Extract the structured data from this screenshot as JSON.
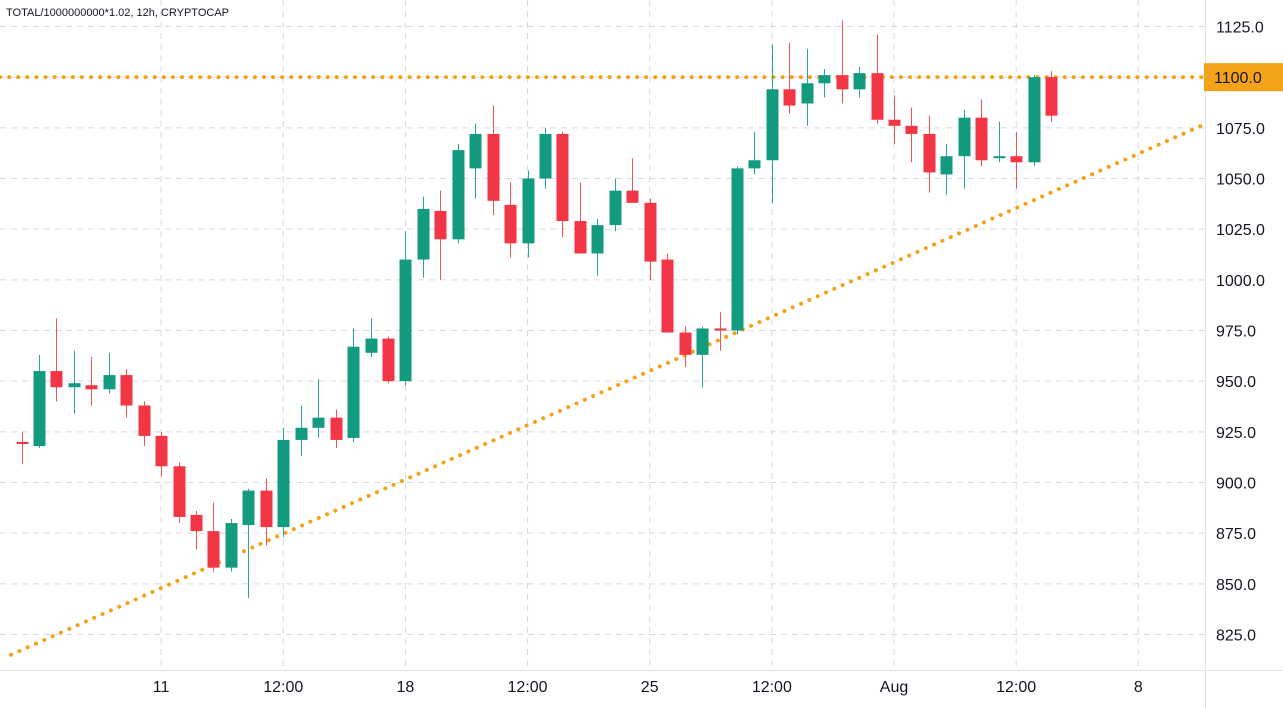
{
  "header": {
    "title": "TOTAL/1000000000*1.02, 12h, CRYPTOCAP"
  },
  "chart_data": {
    "type": "candlestick",
    "timeframe": "12h",
    "ylim": [
      812,
      1140
    ],
    "y_ticks": [
      825,
      850,
      875,
      900,
      925,
      950,
      975,
      1000,
      1025,
      1050,
      1075,
      1100,
      1125
    ],
    "y_tick_labels": [
      "825.0",
      "850.0",
      "875.0",
      "900.0",
      "925.0",
      "950.0",
      "975.0",
      "1000.0",
      "1025.0",
      "1050.0",
      "1075.0",
      "1100.0",
      "1125.0"
    ],
    "x_tick_labels": [
      {
        "index": 8,
        "label": "11"
      },
      {
        "index": 15,
        "label": "12:00"
      },
      {
        "index": 22,
        "label": "18"
      },
      {
        "index": 29,
        "label": "12:00"
      },
      {
        "index": 36,
        "label": "25"
      },
      {
        "index": 43,
        "label": "12:00"
      },
      {
        "index": 50,
        "label": "Aug"
      },
      {
        "index": 57,
        "label": "12:00"
      },
      {
        "index": 64,
        "label": "8"
      }
    ],
    "colors": {
      "up": "#26a69a",
      "down": "#ef5350",
      "up_body": "#129b7f",
      "down_body": "#f23645",
      "level": "#f5a21b",
      "grid": "#d6d9de"
    },
    "level_line": {
      "value": 1100,
      "label": "1100.0"
    },
    "trendline": {
      "start": {
        "index": -0.6,
        "value": 815
      },
      "end": {
        "index": 67.6,
        "value": 1076
      }
    },
    "candles": [
      {
        "i": 0,
        "o": 920,
        "h": 925,
        "l": 909,
        "c": 919
      },
      {
        "i": 1,
        "o": 918,
        "h": 963,
        "l": 917,
        "c": 955
      },
      {
        "i": 2,
        "o": 955,
        "h": 981,
        "l": 940,
        "c": 947
      },
      {
        "i": 3,
        "o": 947,
        "h": 965,
        "l": 934,
        "c": 949
      },
      {
        "i": 4,
        "o": 948,
        "h": 962,
        "l": 938,
        "c": 946
      },
      {
        "i": 5,
        "o": 946,
        "h": 964,
        "l": 944,
        "c": 953
      },
      {
        "i": 6,
        "o": 953,
        "h": 956,
        "l": 932,
        "c": 938
      },
      {
        "i": 7,
        "o": 938,
        "h": 940,
        "l": 918,
        "c": 923
      },
      {
        "i": 8,
        "o": 923,
        "h": 925,
        "l": 903,
        "c": 908
      },
      {
        "i": 9,
        "o": 908,
        "h": 910,
        "l": 880,
        "c": 883
      },
      {
        "i": 10,
        "o": 884,
        "h": 886,
        "l": 867,
        "c": 876
      },
      {
        "i": 11,
        "o": 876,
        "h": 890,
        "l": 856,
        "c": 858
      },
      {
        "i": 12,
        "o": 858,
        "h": 882,
        "l": 856,
        "c": 880
      },
      {
        "i": 13,
        "o": 879,
        "h": 897,
        "l": 843,
        "c": 896
      },
      {
        "i": 14,
        "o": 896,
        "h": 902,
        "l": 869,
        "c": 878
      },
      {
        "i": 15,
        "o": 878,
        "h": 927,
        "l": 873,
        "c": 921
      },
      {
        "i": 16,
        "o": 921,
        "h": 938,
        "l": 913,
        "c": 927
      },
      {
        "i": 17,
        "o": 927,
        "h": 951,
        "l": 922,
        "c": 932
      },
      {
        "i": 18,
        "o": 932,
        "h": 936,
        "l": 917,
        "c": 921
      },
      {
        "i": 19,
        "o": 922,
        "h": 976,
        "l": 920,
        "c": 967
      },
      {
        "i": 20,
        "o": 964,
        "h": 981,
        "l": 962,
        "c": 971
      },
      {
        "i": 21,
        "o": 971,
        "h": 972,
        "l": 949,
        "c": 950
      },
      {
        "i": 22,
        "o": 950,
        "h": 1024,
        "l": 948,
        "c": 1010
      },
      {
        "i": 23,
        "o": 1010,
        "h": 1041,
        "l": 1001,
        "c": 1035
      },
      {
        "i": 24,
        "o": 1034,
        "h": 1044,
        "l": 1000,
        "c": 1020
      },
      {
        "i": 25,
        "o": 1020,
        "h": 1067,
        "l": 1018,
        "c": 1064
      },
      {
        "i": 26,
        "o": 1055,
        "h": 1077,
        "l": 1040,
        "c": 1072
      },
      {
        "i": 27,
        "o": 1072,
        "h": 1086,
        "l": 1032,
        "c": 1039
      },
      {
        "i": 28,
        "o": 1037,
        "h": 1048,
        "l": 1011,
        "c": 1018
      },
      {
        "i": 29,
        "o": 1018,
        "h": 1054,
        "l": 1011,
        "c": 1050
      },
      {
        "i": 30,
        "o": 1050,
        "h": 1075,
        "l": 1045,
        "c": 1072
      },
      {
        "i": 31,
        "o": 1072,
        "h": 1073,
        "l": 1021,
        "c": 1029
      },
      {
        "i": 32,
        "o": 1029,
        "h": 1048,
        "l": 1014,
        "c": 1013
      },
      {
        "i": 33,
        "o": 1013,
        "h": 1030,
        "l": 1002,
        "c": 1027
      },
      {
        "i": 34,
        "o": 1027,
        "h": 1050,
        "l": 1024,
        "c": 1044
      },
      {
        "i": 35,
        "o": 1044,
        "h": 1060,
        "l": 1038,
        "c": 1038
      },
      {
        "i": 36,
        "o": 1038,
        "h": 1040,
        "l": 1000,
        "c": 1009
      },
      {
        "i": 37,
        "o": 1010,
        "h": 1013,
        "l": 974,
        "c": 974
      },
      {
        "i": 38,
        "o": 974,
        "h": 977,
        "l": 957,
        "c": 963
      },
      {
        "i": 39,
        "o": 963,
        "h": 977,
        "l": 947,
        "c": 976
      },
      {
        "i": 40,
        "o": 976,
        "h": 984,
        "l": 965,
        "c": 975
      },
      {
        "i": 41,
        "o": 975,
        "h": 1056,
        "l": 973,
        "c": 1055
      },
      {
        "i": 42,
        "o": 1055,
        "h": 1073,
        "l": 1052,
        "c": 1059
      },
      {
        "i": 43,
        "o": 1059,
        "h": 1116,
        "l": 1038,
        "c": 1094
      },
      {
        "i": 44,
        "o": 1094,
        "h": 1117,
        "l": 1082,
        "c": 1086
      },
      {
        "i": 45,
        "o": 1087,
        "h": 1114,
        "l": 1076,
        "c": 1097
      },
      {
        "i": 46,
        "o": 1097,
        "h": 1104,
        "l": 1090,
        "c": 1101
      },
      {
        "i": 47,
        "o": 1101,
        "h": 1128,
        "l": 1087,
        "c": 1094
      },
      {
        "i": 48,
        "o": 1094,
        "h": 1105,
        "l": 1090,
        "c": 1102
      },
      {
        "i": 49,
        "o": 1102,
        "h": 1121,
        "l": 1077,
        "c": 1079
      },
      {
        "i": 50,
        "o": 1079,
        "h": 1091,
        "l": 1067,
        "c": 1076
      },
      {
        "i": 51,
        "o": 1076,
        "h": 1085,
        "l": 1058,
        "c": 1072
      },
      {
        "i": 52,
        "o": 1072,
        "h": 1081,
        "l": 1043,
        "c": 1053
      },
      {
        "i": 53,
        "o": 1052,
        "h": 1067,
        "l": 1042,
        "c": 1061
      },
      {
        "i": 54,
        "o": 1061,
        "h": 1084,
        "l": 1045,
        "c": 1080
      },
      {
        "i": 55,
        "o": 1080,
        "h": 1089,
        "l": 1056,
        "c": 1059
      },
      {
        "i": 56,
        "o": 1060,
        "h": 1078,
        "l": 1058,
        "c": 1061
      },
      {
        "i": 57,
        "o": 1061,
        "h": 1073,
        "l": 1045,
        "c": 1058
      },
      {
        "i": 58,
        "o": 1058,
        "h": 1101,
        "l": 1056,
        "c": 1100
      },
      {
        "i": 59,
        "o": 1100,
        "h": 1103,
        "l": 1078,
        "c": 1081
      }
    ]
  }
}
